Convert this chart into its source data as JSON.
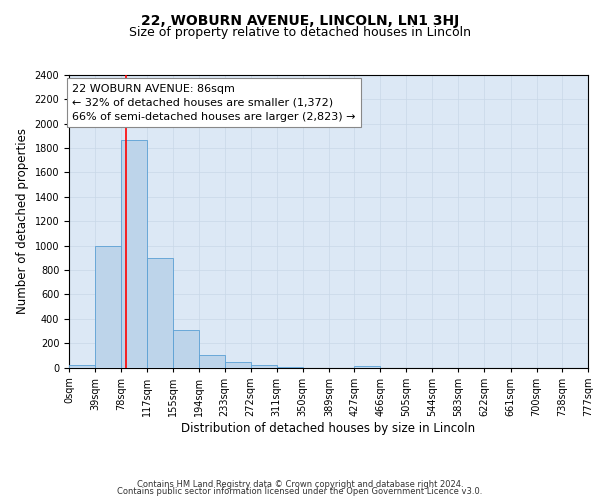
{
  "title_line1": "22, WOBURN AVENUE, LINCOLN, LN1 3HJ",
  "title_line2": "Size of property relative to detached houses in Lincoln",
  "xlabel": "Distribution of detached houses by size in Lincoln",
  "ylabel": "Number of detached properties",
  "bin_edges": [
    0,
    39,
    78,
    117,
    155,
    194,
    233,
    272,
    311,
    350,
    389,
    427,
    466,
    505,
    544,
    583,
    622,
    661,
    700,
    738,
    777
  ],
  "bin_labels": [
    "0sqm",
    "39sqm",
    "78sqm",
    "117sqm",
    "155sqm",
    "194sqm",
    "233sqm",
    "272sqm",
    "311sqm",
    "350sqm",
    "389sqm",
    "427sqm",
    "466sqm",
    "505sqm",
    "544sqm",
    "583sqm",
    "622sqm",
    "661sqm",
    "700sqm",
    "738sqm",
    "777sqm"
  ],
  "counts": [
    20,
    1000,
    1870,
    895,
    305,
    105,
    45,
    20,
    5,
    0,
    0,
    10,
    0,
    0,
    0,
    0,
    0,
    0,
    0,
    0
  ],
  "bar_color": "#bdd4ea",
  "bar_edge_color": "#5a9fd4",
  "property_line_x": 86,
  "property_line_color": "red",
  "annotation_text": "22 WOBURN AVENUE: 86sqm\n← 32% of detached houses are smaller (1,372)\n66% of semi-detached houses are larger (2,823) →",
  "annotation_box_color": "white",
  "annotation_box_edge_color": "#888888",
  "ylim": [
    0,
    2400
  ],
  "yticks": [
    0,
    200,
    400,
    600,
    800,
    1000,
    1200,
    1400,
    1600,
    1800,
    2000,
    2200,
    2400
  ],
  "grid_color": "#c8d8e8",
  "bg_color": "#dce8f5",
  "footer_line1": "Contains HM Land Registry data © Crown copyright and database right 2024.",
  "footer_line2": "Contains public sector information licensed under the Open Government Licence v3.0.",
  "title_fontsize": 10,
  "subtitle_fontsize": 9,
  "axis_label_fontsize": 8.5,
  "tick_fontsize": 7,
  "annotation_fontsize": 8,
  "footer_fontsize": 6
}
